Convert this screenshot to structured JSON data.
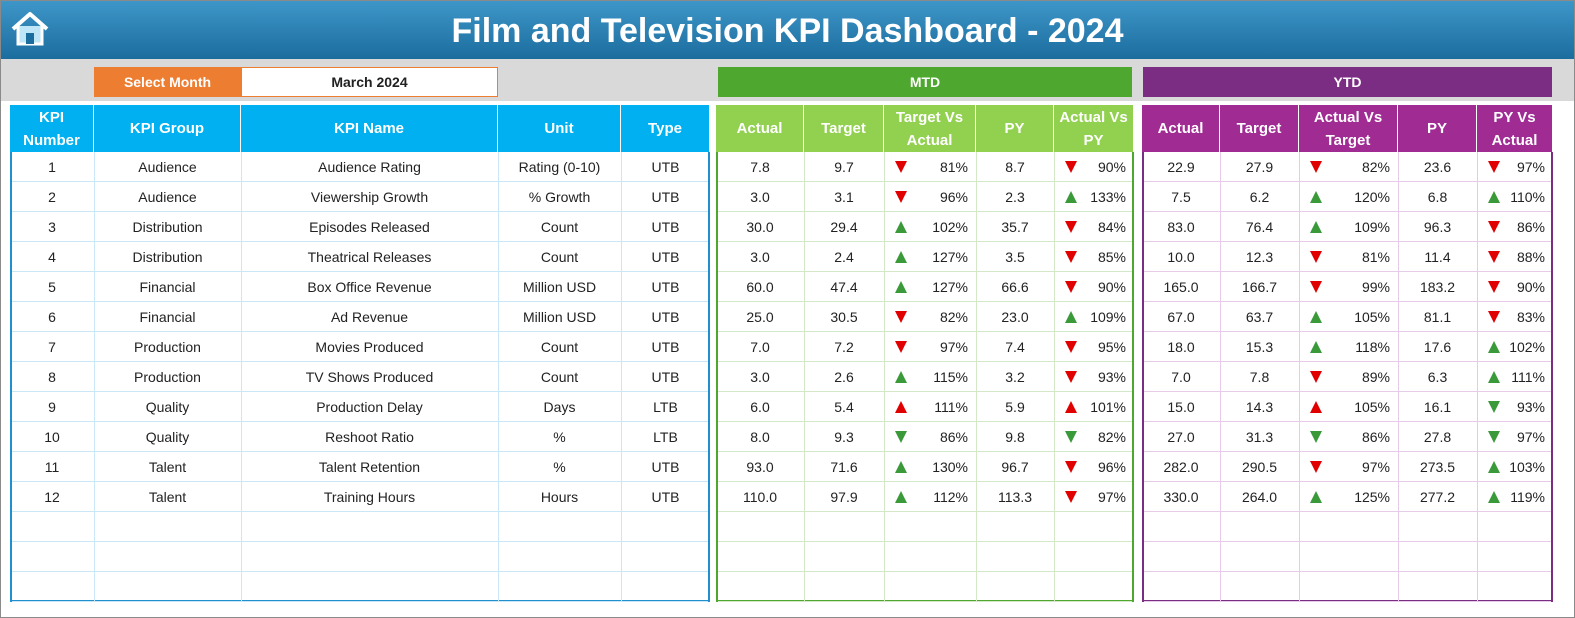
{
  "header": {
    "title": "Film and Television KPI Dashboard - 2024"
  },
  "filter": {
    "label": "Select Month",
    "value": "March 2024"
  },
  "sections": {
    "mtd": "MTD",
    "ytd": "YTD"
  },
  "kpi_table": {
    "columns": [
      "KPI Number",
      "KPI Group",
      "KPI Name",
      "Unit",
      "Type"
    ],
    "rows": [
      [
        "1",
        "Audience",
        "Audience Rating",
        "Rating (0-10)",
        "UTB"
      ],
      [
        "2",
        "Audience",
        "Viewership Growth",
        "% Growth",
        "UTB"
      ],
      [
        "3",
        "Distribution",
        "Episodes Released",
        "Count",
        "UTB"
      ],
      [
        "4",
        "Distribution",
        "Theatrical Releases",
        "Count",
        "UTB"
      ],
      [
        "5",
        "Financial",
        "Box Office Revenue",
        "Million USD",
        "UTB"
      ],
      [
        "6",
        "Financial",
        "Ad Revenue",
        "Million USD",
        "UTB"
      ],
      [
        "7",
        "Production",
        "Movies Produced",
        "Count",
        "UTB"
      ],
      [
        "8",
        "Production",
        "TV Shows Produced",
        "Count",
        "UTB"
      ],
      [
        "9",
        "Quality",
        "Production Delay",
        "Days",
        "LTB"
      ],
      [
        "10",
        "Quality",
        "Reshoot Ratio",
        "%",
        "LTB"
      ],
      [
        "11",
        "Talent",
        "Talent Retention",
        "%",
        "UTB"
      ],
      [
        "12",
        "Talent",
        "Training Hours",
        "Hours",
        "UTB"
      ]
    ]
  },
  "mtd_table": {
    "columns": [
      "Actual",
      "Target",
      "Target Vs Actual",
      "PY",
      "Actual Vs PY"
    ],
    "rows": [
      [
        "7.8",
        "9.7",
        "81%",
        "8.7",
        "90%"
      ],
      [
        "3.0",
        "3.1",
        "96%",
        "2.3",
        "133%"
      ],
      [
        "30.0",
        "29.4",
        "102%",
        "35.7",
        "84%"
      ],
      [
        "3.0",
        "2.4",
        "127%",
        "3.5",
        "85%"
      ],
      [
        "60.0",
        "47.4",
        "127%",
        "66.6",
        "90%"
      ],
      [
        "25.0",
        "30.5",
        "82%",
        "23.0",
        "109%"
      ],
      [
        "7.0",
        "7.2",
        "97%",
        "7.4",
        "95%"
      ],
      [
        "3.0",
        "2.6",
        "115%",
        "3.2",
        "93%"
      ],
      [
        "6.0",
        "5.4",
        "111%",
        "5.9",
        "101%"
      ],
      [
        "8.0",
        "9.3",
        "86%",
        "9.8",
        "82%"
      ],
      [
        "93.0",
        "71.6",
        "130%",
        "96.7",
        "96%"
      ],
      [
        "110.0",
        "97.9",
        "112%",
        "113.3",
        "97%"
      ]
    ]
  },
  "ytd_table": {
    "columns": [
      "Actual",
      "Target",
      "Actual Vs Target",
      "PY",
      "PY Vs Actual"
    ],
    "rows": [
      [
        "22.9",
        "27.9",
        "82%",
        "23.6",
        "97%"
      ],
      [
        "7.5",
        "6.2",
        "120%",
        "6.8",
        "110%"
      ],
      [
        "83.0",
        "76.4",
        "109%",
        "96.3",
        "86%"
      ],
      [
        "10.0",
        "12.3",
        "81%",
        "11.4",
        "88%"
      ],
      [
        "165.0",
        "166.7",
        "99%",
        "183.2",
        "90%"
      ],
      [
        "67.0",
        "63.7",
        "105%",
        "81.1",
        "83%"
      ],
      [
        "18.0",
        "15.3",
        "118%",
        "17.6",
        "102%"
      ],
      [
        "7.0",
        "7.8",
        "89%",
        "6.3",
        "111%"
      ],
      [
        "15.0",
        "14.3",
        "105%",
        "16.1",
        "93%"
      ],
      [
        "27.0",
        "31.3",
        "86%",
        "27.8",
        "97%"
      ],
      [
        "282.0",
        "290.5",
        "97%",
        "273.5",
        "103%"
      ],
      [
        "330.0",
        "264.0",
        "125%",
        "277.2",
        "119%"
      ]
    ]
  }
}
